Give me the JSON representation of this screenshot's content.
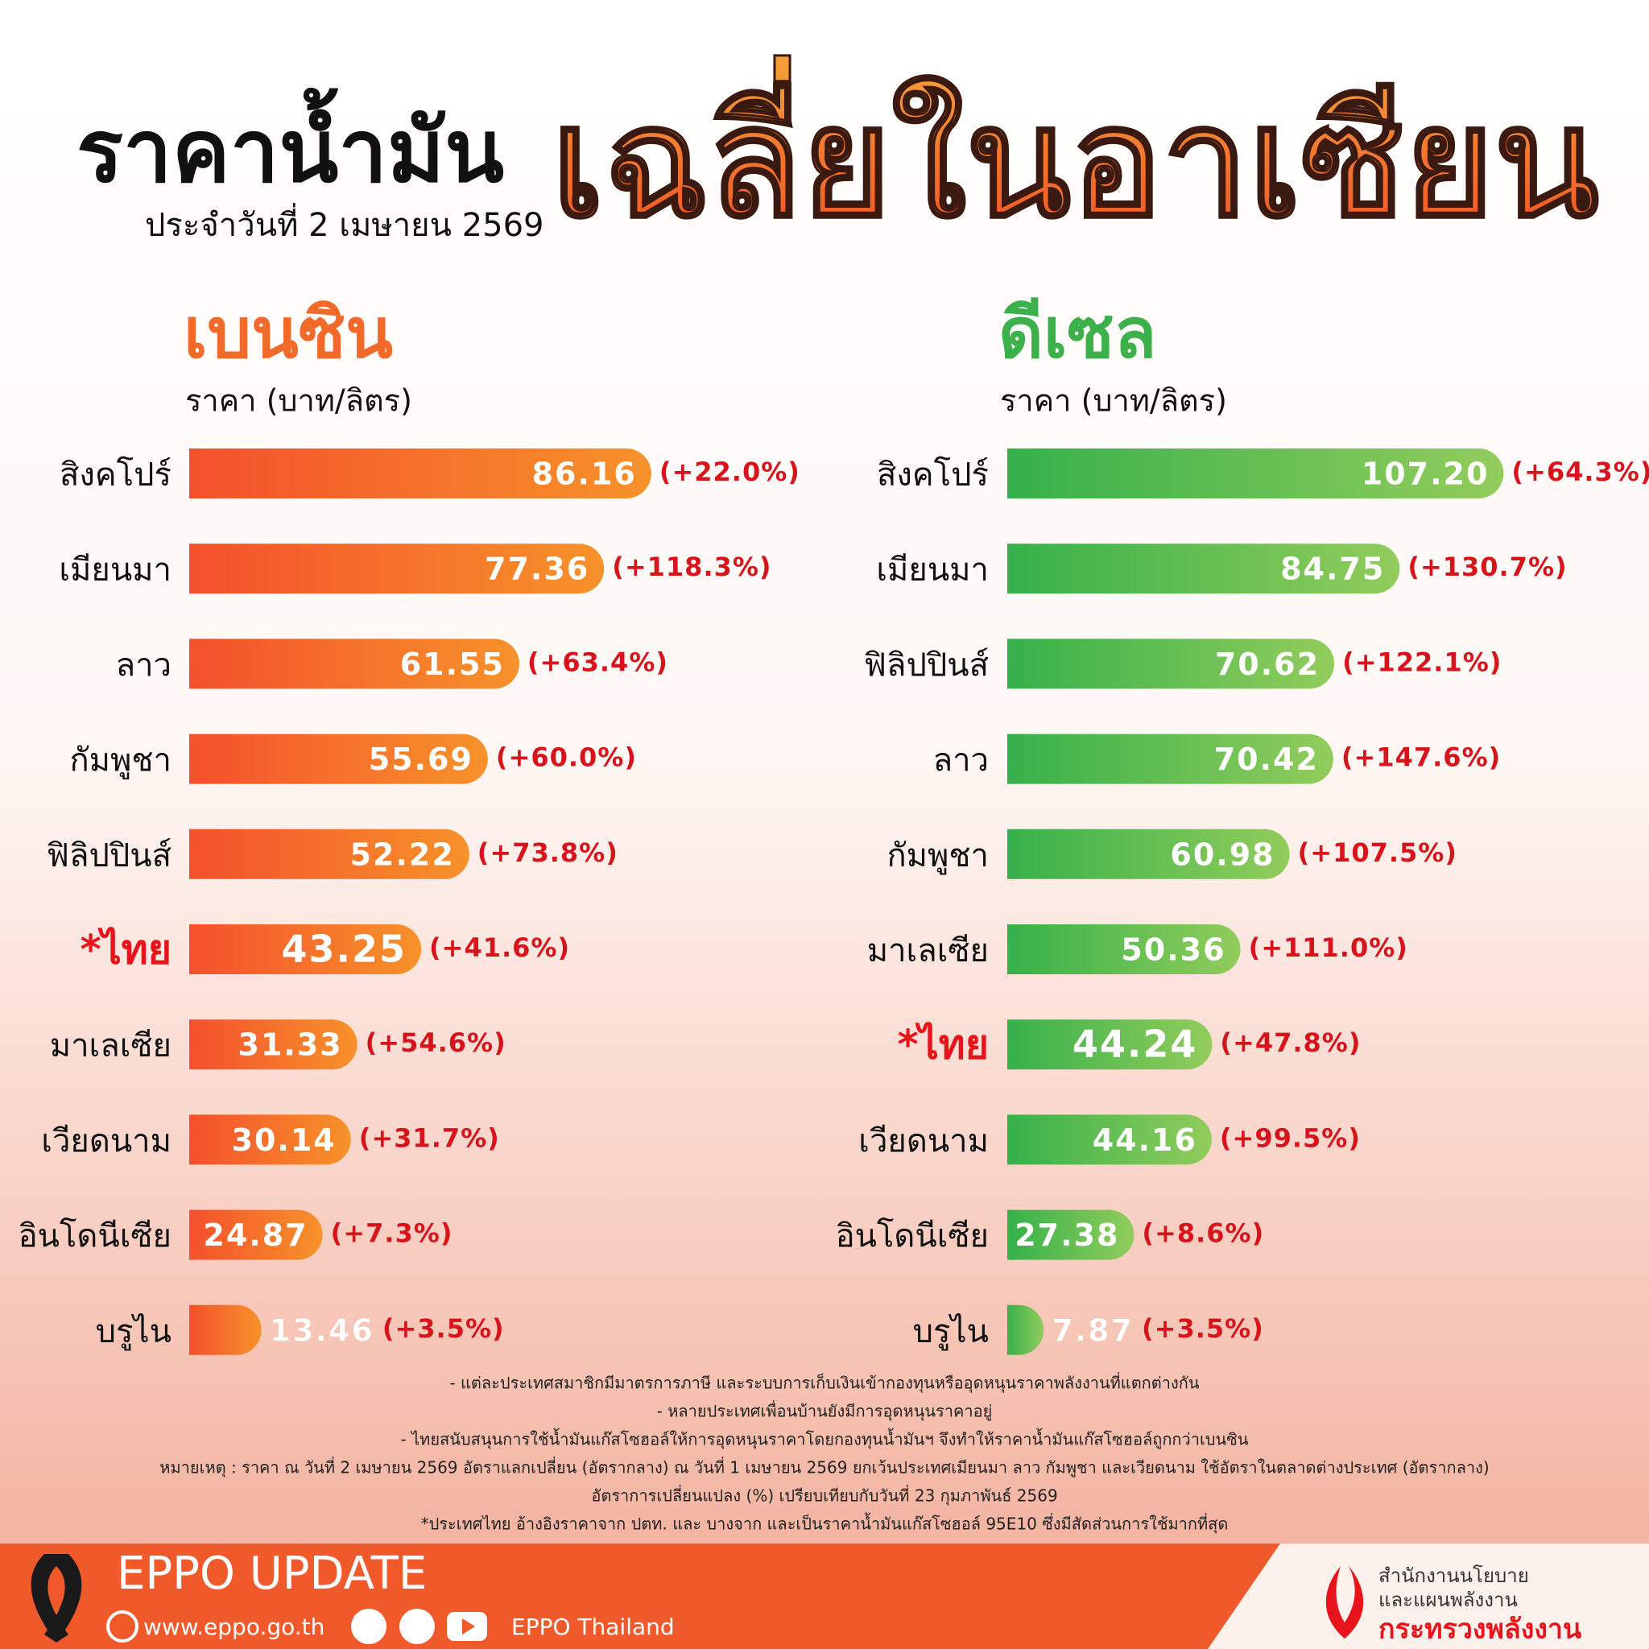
{
  "header": {
    "title": "ราคาน้ำมัน",
    "highlight_title": "เฉลี่ยในอาเซียน",
    "date": "ประจำวันที่  2 เมษายน 2569"
  },
  "chart_data": [
    {
      "type": "bar",
      "orientation": "horizontal",
      "title": "เบนซิน",
      "subtitle": "ราคา (บาท/ลิตร)",
      "categories": [
        "สิงคโปร์",
        "เมียนมา",
        "ลาว",
        "กัมพูชา",
        "ฟิลิปปินส์",
        "*ไทย",
        "มาเลเซีย",
        "เวียดนาม",
        "อินโดนีเซีย",
        "บรูไน"
      ],
      "values": [
        86.16,
        77.36,
        61.55,
        55.69,
        52.22,
        43.25,
        31.33,
        30.14,
        24.87,
        13.46
      ],
      "value_labels": [
        "86.16",
        "77.36",
        "61.55",
        "55.69",
        "52.22",
        "43.25",
        "31.33",
        "30.14",
        "24.87",
        "13.46"
      ],
      "change_labels": [
        "(+22.0%)",
        "(+118.3%)",
        "(+63.4%)",
        "(+60.0%)",
        "(+73.8%)",
        "(+41.6%)",
        "(+54.6%)",
        "(+31.7%)",
        "(+7.3%)",
        "(+3.5%)"
      ],
      "color": "#f4502c",
      "color_end": "#f7922a",
      "title_color": "#f26a2a",
      "highlight_index": 5,
      "highlight_color": "#e8141c",
      "xlim": [
        0,
        100
      ]
    },
    {
      "type": "bar",
      "orientation": "horizontal",
      "title": "ดีเซล",
      "subtitle": "ราคา (บาท/ลิตร)",
      "categories": [
        "สิงคโปร์",
        "เมียนมา",
        "ฟิลิปปินส์",
        "ลาว",
        "กัมพูชา",
        "มาเลเซีย",
        "*ไทย",
        "เวียดนาม",
        "อินโดนีเซีย",
        "บรูไน"
      ],
      "values": [
        107.2,
        84.75,
        70.62,
        70.42,
        60.98,
        50.36,
        44.24,
        44.16,
        27.38,
        7.87
      ],
      "value_labels": [
        "107.20",
        "84.75",
        "70.62",
        "70.42",
        "60.98",
        "50.36",
        "44.24",
        "44.16",
        "27.38",
        "7.87"
      ],
      "change_labels": [
        "(+64.3%)",
        "(+130.7%)",
        "(+122.1%)",
        "(+147.6%)",
        "(+107.5%)",
        "(+111.0%)",
        "(+47.8%)",
        "(+99.5%)",
        "(+8.6%)",
        "(+3.5%)"
      ],
      "color": "#36b14a",
      "color_end": "#92cc5c",
      "title_color": "#3cb04a",
      "highlight_index": 6,
      "highlight_color": "#e8141c",
      "xlim": [
        0,
        120
      ]
    }
  ],
  "notes": [
    "- แต่ละประเทศสมาชิกมีมาตรการภาษี และระบบการเก็บเงินเข้ากองทุนหรืออุดหนุนราคาพลังงานที่แตกต่างกัน",
    "- หลายประเทศเพื่อนบ้านยังมีการอุดหนุนราคาอยู่",
    "- ไทยสนับสนุนการใช้น้ำมันแก๊สโซฮอล์ให้การอุดหนุนราคาโดยกองทุนน้ำมันฯ จึงทำให้ราคาน้ำมันแก๊สโซฮอล์ถูกกว่าเบนซิน",
    "หมายเหตุ : ราคา ณ วันที่ 2 เมษายน 2569 อัตราแลกเปลี่ยน (อัตรากลาง) ณ วันที่ 1 เมษายน 2569 ยกเว้นประเทศเมียนมา ลาว กัมพูชา และเวียดนาม ใช้อัตราในตลาดต่างประเทศ (อัตรากลาง)",
    "อัตราการเปลี่ยนแปลง (%) เปรียบเทียบกับวันที่ 23 กุมภาพันธ์ 2569",
    "*ประเทศไทย อ้างอิงราคาจาก ปตท. และ บางจาก และเป็นราคาน้ำมันแก๊สโซฮอล์ 95E10 ซึ่งมีสัดส่วนการใช้มากที่สุด"
  ],
  "footer": {
    "brand": "EPPO UPDATE",
    "website": "www.eppo.go.th",
    "social": "EPPO Thailand",
    "org_line1": "สำนักงานนโยบาย",
    "org_line2": "และแผนพลังงาน",
    "ministry": "กระทรวงพลังงาน"
  }
}
